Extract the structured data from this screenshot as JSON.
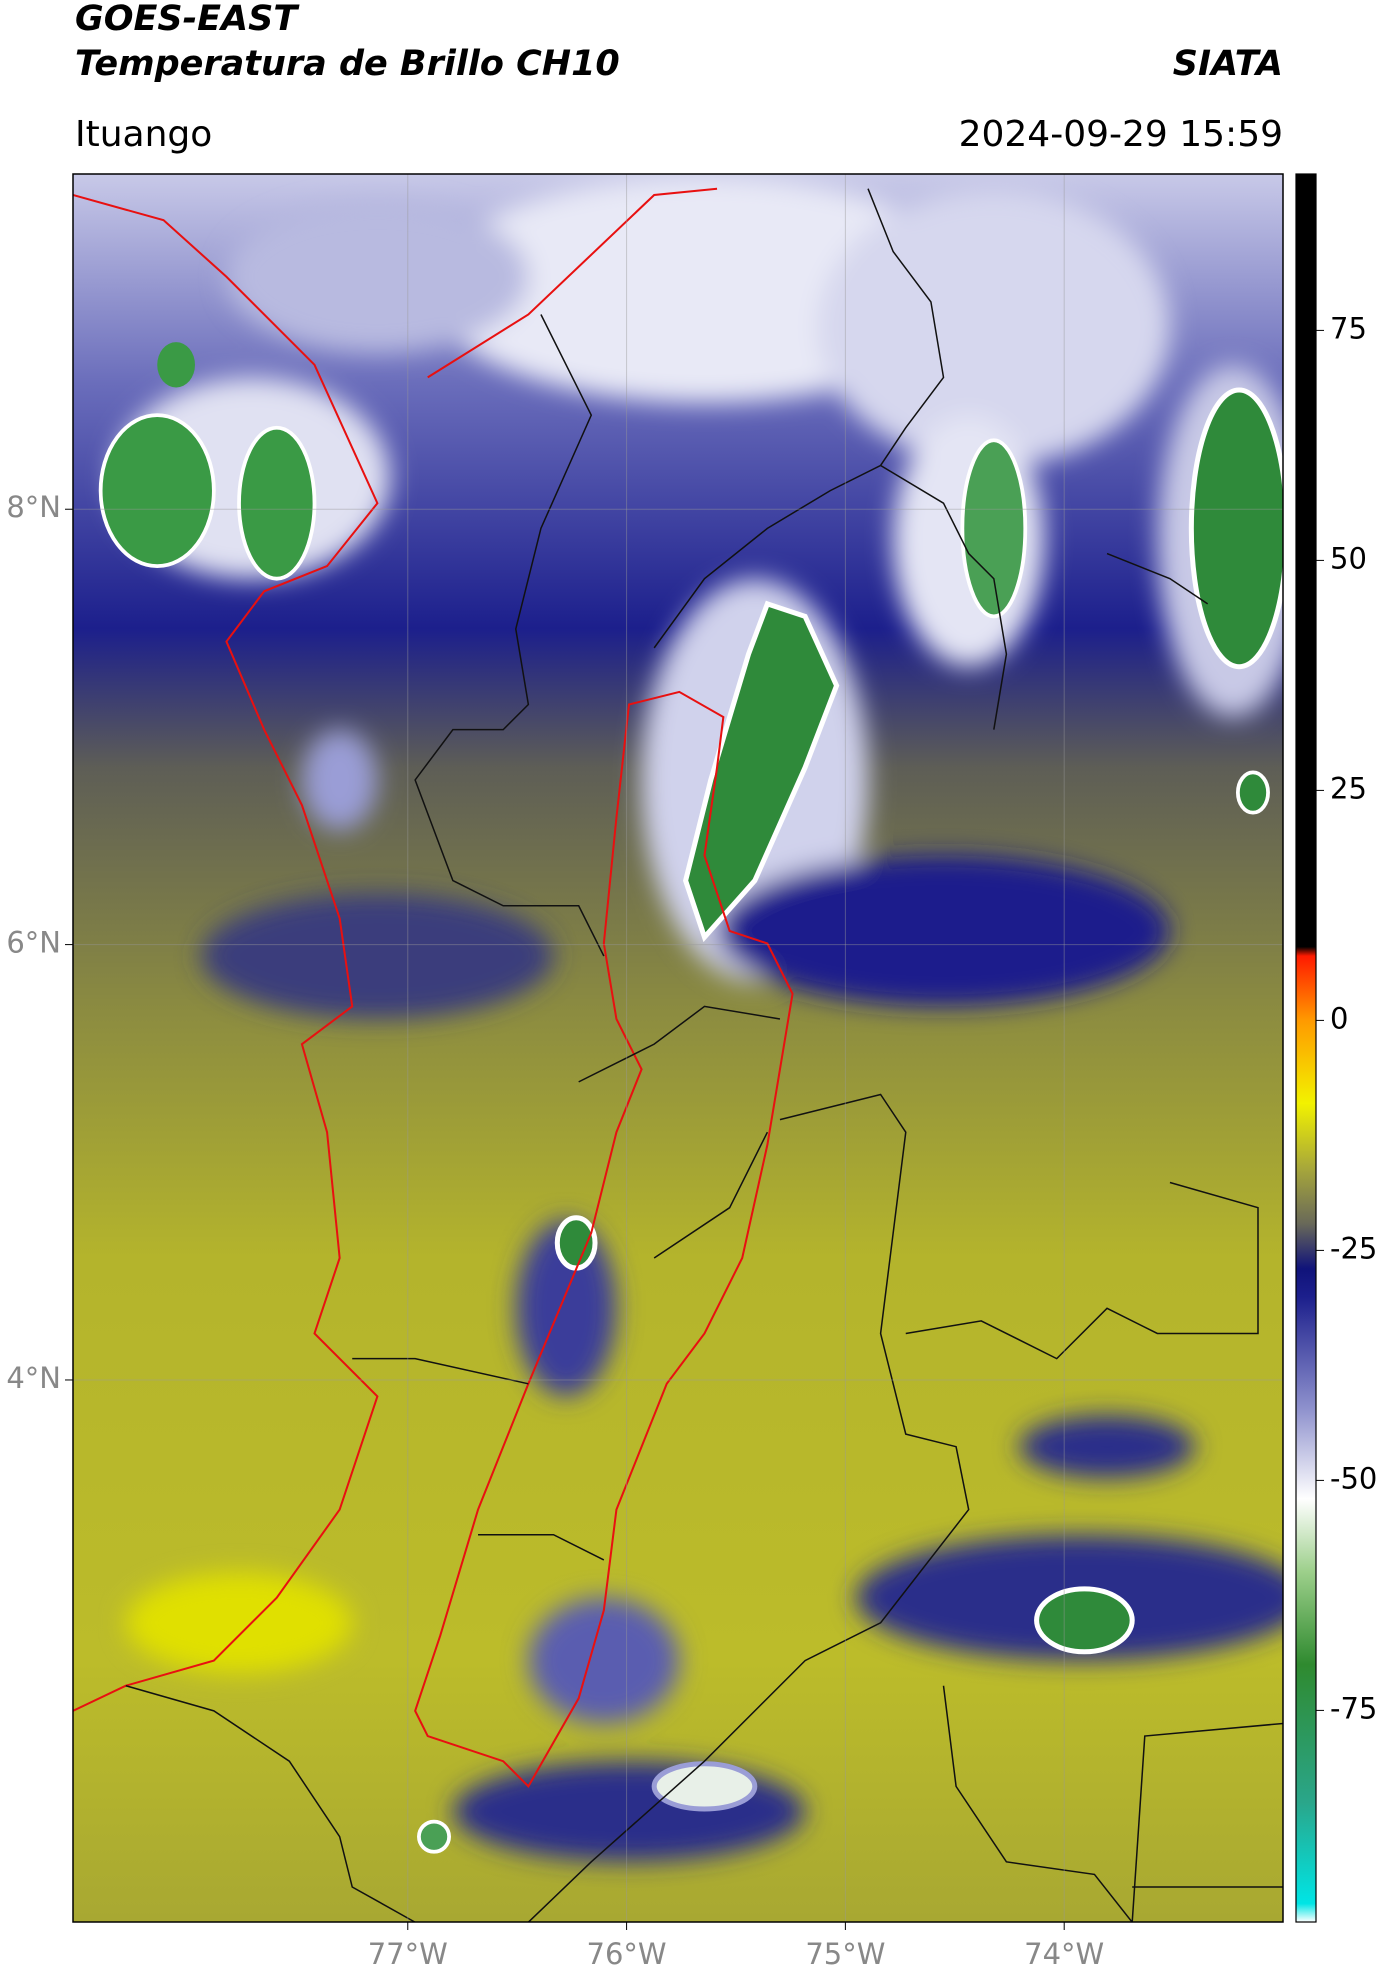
{
  "header": {
    "title": "GOES-EAST",
    "subtitle": "Temperatura de Brillo CH10",
    "source": "SIATA",
    "location": "Ituango",
    "timestamp": "2024-09-29 15:59"
  },
  "map": {
    "xlim": [
      -78.53,
      -73.0
    ],
    "ylim": [
      1.51,
      9.54
    ],
    "xticks": [
      {
        "value": -77,
        "label": "77°W"
      },
      {
        "value": -76,
        "label": "76°W"
      },
      {
        "value": -75,
        "label": "75°W"
      },
      {
        "value": -74,
        "label": "74°W"
      }
    ],
    "yticks": [
      {
        "value": 8,
        "label": "8°N"
      },
      {
        "value": 6,
        "label": "6°N"
      },
      {
        "value": 4,
        "label": "4°N"
      }
    ],
    "grid": true
  },
  "colorbar": {
    "lim": [
      -98,
      92
    ],
    "ticks": [
      -75,
      -50,
      -25,
      0,
      25,
      50,
      75
    ],
    "stops": [
      {
        "value": -98,
        "color": "#ffffff"
      },
      {
        "value": -96,
        "color": "#00e5e5"
      },
      {
        "value": -85,
        "color": "#2aa68a"
      },
      {
        "value": -70,
        "color": "#2f8a2f"
      },
      {
        "value": -60,
        "color": "#9ccf8a"
      },
      {
        "value": -52,
        "color": "#ffffff"
      },
      {
        "value": -42,
        "color": "#8c8fcc"
      },
      {
        "value": -30,
        "color": "#1c1f8c"
      },
      {
        "value": -27,
        "color": "#10137a"
      },
      {
        "value": -22,
        "color": "#6a6a58"
      },
      {
        "value": -16,
        "color": "#a8a83a"
      },
      {
        "value": -9,
        "color": "#f2f200"
      },
      {
        "value": 0,
        "color": "#ff9a00"
      },
      {
        "value": 7,
        "color": "#ff1a00"
      },
      {
        "value": 8,
        "color": "#000000"
      },
      {
        "value": 92,
        "color": "#000000"
      }
    ]
  }
}
